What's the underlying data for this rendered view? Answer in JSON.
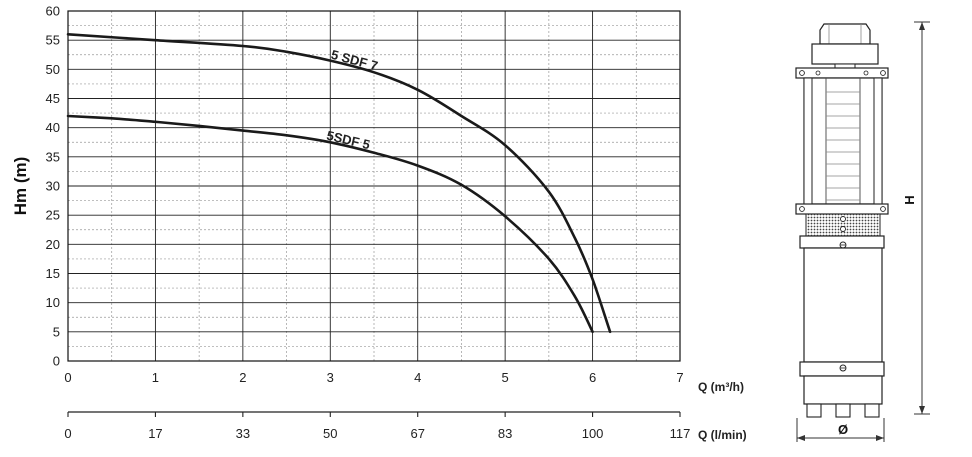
{
  "chart_data": {
    "type": "line",
    "title": "",
    "ylabel": "Hm (m)",
    "xlabel": "Q (m³/h)",
    "x2label": "Q (l/min)",
    "xlim": [
      0,
      7
    ],
    "ylim": [
      0,
      60
    ],
    "x_ticks": [
      "0",
      "1",
      "2",
      "3",
      "4",
      "5",
      "6",
      "7"
    ],
    "x2_ticks": [
      "0",
      "17",
      "33",
      "50",
      "67",
      "83",
      "100",
      "117"
    ],
    "y_ticks": [
      "0",
      "5",
      "10",
      "15",
      "20",
      "25",
      "30",
      "35",
      "40",
      "45",
      "50",
      "55",
      "60"
    ],
    "grid": true,
    "series": [
      {
        "name": "5 SDF 7",
        "x": [
          0,
          1,
          2,
          2.5,
          3,
          3.5,
          4,
          4.5,
          5,
          5.5,
          5.8,
          6,
          6.2
        ],
        "y": [
          56,
          55,
          54,
          53,
          51.5,
          49.5,
          46.5,
          42,
          37,
          29,
          21,
          14,
          5
        ]
      },
      {
        "name": "5SDF 5",
        "x": [
          0,
          0.5,
          1,
          1.5,
          2,
          2.5,
          3,
          3.5,
          4,
          4.5,
          5,
          5.5,
          5.8,
          6
        ],
        "y": [
          42,
          41.6,
          41,
          40.3,
          39.5,
          38.7,
          37.5,
          35.7,
          33.5,
          30.2,
          24.8,
          17.5,
          11,
          5
        ]
      }
    ]
  },
  "pump_drawing": {
    "height_label": "H",
    "diameter_label": "Ø"
  }
}
